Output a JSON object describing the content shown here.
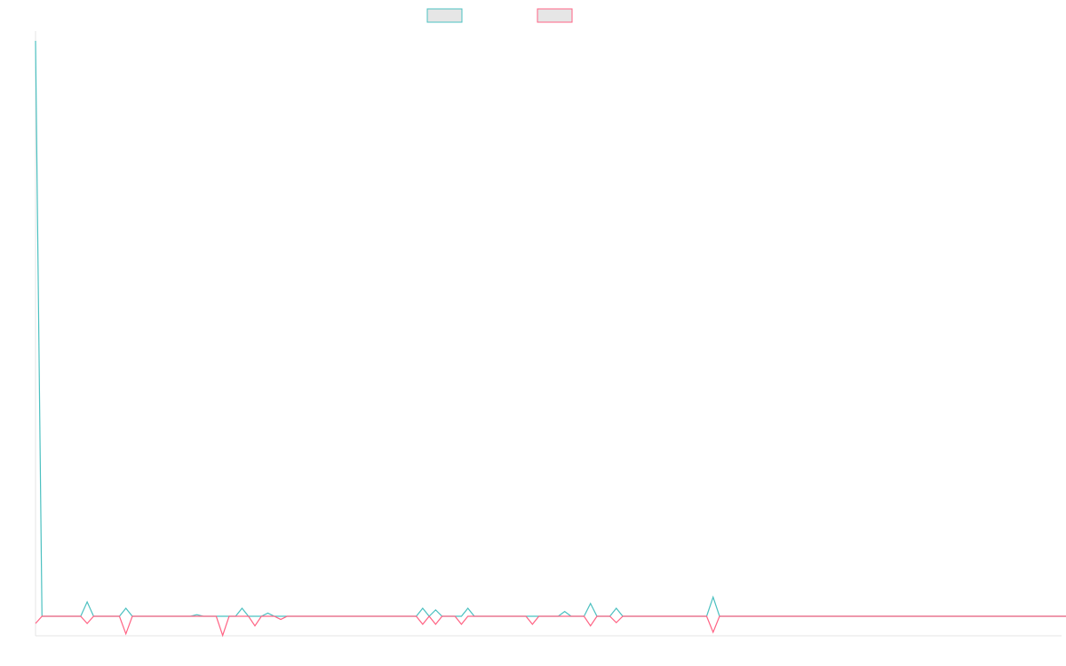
{
  "colors": {
    "series_a": "#4bc0c0",
    "series_b": "#ff6384",
    "legend_fill": "#e6e6e6",
    "axis": "#e5e5e5"
  },
  "chart_data": {
    "type": "line",
    "title": "",
    "xlabel": "",
    "ylabel": "",
    "legend": {
      "placement": "top-center",
      "labels": [
        "",
        ""
      ]
    },
    "grid": false,
    "x_count": 160,
    "ylim": [
      -1.3,
      36.5
    ],
    "series": [
      {
        "color": "#4bc0c0",
        "values": [
          36,
          0,
          0,
          0,
          0,
          0,
          0,
          0,
          0.9,
          0,
          0,
          0,
          0,
          0,
          0.5,
          0,
          0,
          0,
          0,
          0,
          0,
          0,
          0,
          0,
          0,
          0.1,
          0,
          0,
          0,
          0,
          0,
          0,
          0.5,
          0,
          0,
          0,
          0.2,
          0,
          0,
          0,
          0,
          0,
          0,
          0,
          0,
          0,
          0,
          0,
          0,
          0,
          0,
          0,
          0,
          0,
          0,
          0,
          0,
          0,
          0,
          0,
          0.5,
          0,
          0.4,
          0,
          0,
          0,
          0,
          0.5,
          0,
          0,
          0,
          0,
          0,
          0,
          0,
          0,
          0,
          0,
          0,
          0,
          0,
          0,
          0.3,
          0,
          0,
          0,
          0.8,
          0,
          0,
          0,
          0.5,
          0,
          0,
          0,
          0,
          0,
          0,
          0,
          0,
          0,
          0,
          0,
          0,
          0,
          0,
          1.2,
          0,
          0,
          0,
          0,
          0,
          0,
          0,
          0,
          0,
          0,
          0,
          0,
          0,
          0,
          0,
          0,
          0,
          0,
          0,
          0,
          0,
          0,
          0,
          0,
          0,
          0,
          0,
          0,
          0,
          0,
          0,
          0,
          0,
          0,
          0,
          0,
          0,
          0,
          0,
          0,
          0,
          0,
          0,
          0,
          0,
          0,
          0,
          0,
          0,
          0,
          0,
          0,
          0,
          0,
          0,
          0,
          0,
          0
        ]
      },
      {
        "color": "#ff6384",
        "values": [
          -0.45,
          0,
          0,
          0,
          0,
          0,
          0,
          0,
          -0.45,
          0,
          0,
          0,
          0,
          0,
          -1.1,
          0,
          0,
          0,
          0,
          0,
          0,
          0,
          0,
          0,
          0,
          0,
          0,
          0,
          0,
          -1.2,
          0,
          0,
          0,
          0,
          -0.6,
          0,
          0,
          0,
          -0.2,
          0,
          0,
          0,
          0,
          0,
          0,
          0,
          0,
          0,
          0,
          0,
          0,
          0,
          0,
          0,
          0,
          0,
          0,
          0,
          0,
          0,
          -0.5,
          0,
          -0.5,
          0,
          0,
          0,
          -0.5,
          0,
          0,
          0,
          0,
          0,
          0,
          0,
          0,
          0,
          0,
          -0.5,
          0,
          0,
          0,
          0,
          0,
          0,
          0,
          0,
          -0.6,
          0,
          0,
          0,
          -0.4,
          0,
          0,
          0,
          0,
          0,
          0,
          0,
          0,
          0,
          0,
          0,
          0,
          0,
          0,
          -1.0,
          0,
          0,
          0,
          0,
          0,
          0,
          0,
          0,
          0,
          0,
          0,
          0,
          0,
          0,
          0,
          0,
          0,
          0,
          0,
          0,
          0,
          0,
          0,
          0,
          0,
          0,
          0,
          0,
          0,
          0,
          0,
          0,
          0,
          0,
          0,
          0,
          0,
          0,
          0,
          0,
          0,
          0,
          0,
          0,
          0,
          0,
          0,
          0,
          0,
          0,
          0,
          0,
          0,
          0,
          0,
          0,
          0,
          0
        ]
      }
    ]
  }
}
